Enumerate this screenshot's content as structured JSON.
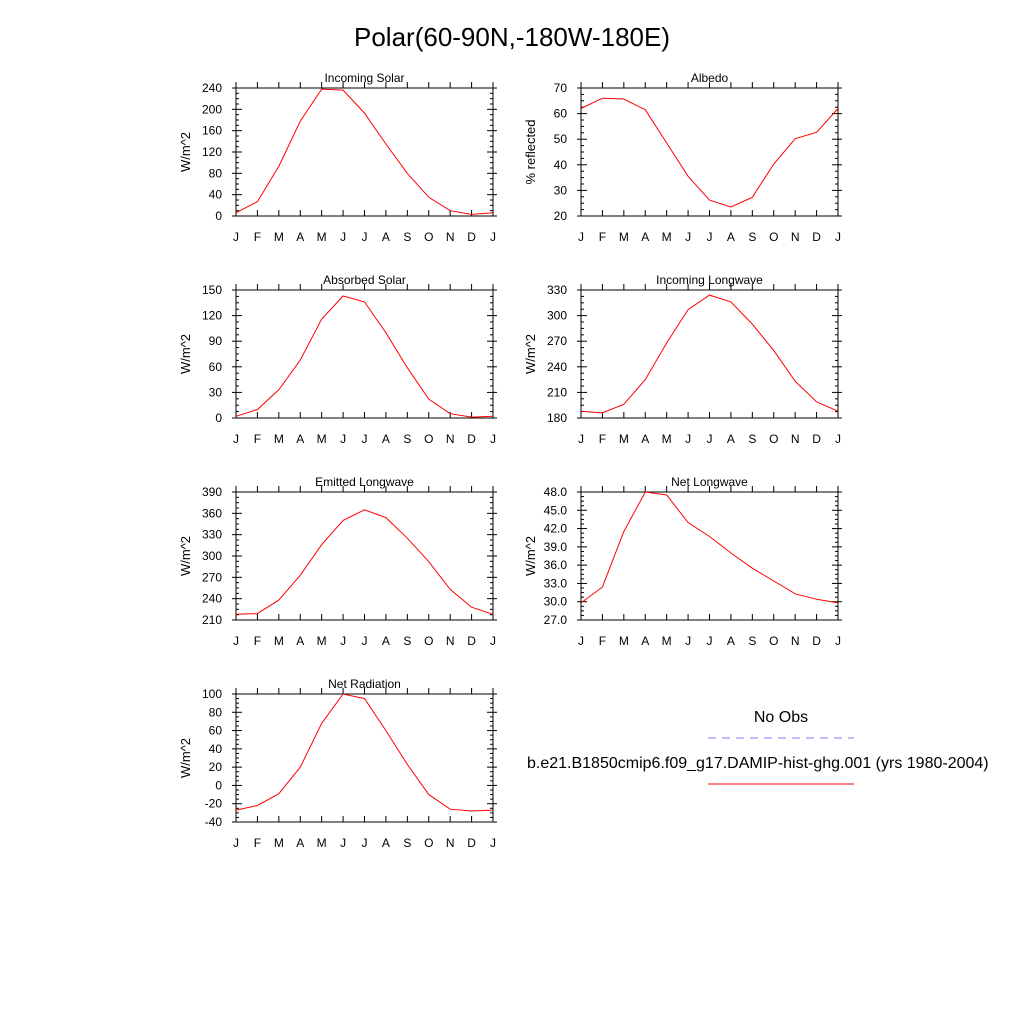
{
  "title": "Polar(60-90N,-180W-180E)",
  "legend": {
    "obs_label": "No Obs",
    "model_label": "b.e21.B1850cmip6.f09_g17.DAMIP-hist-ghg.001 (yrs 1980-2004)",
    "obs_color": "#7f7fff",
    "model_color": "#ff0000"
  },
  "chart_data": [
    {
      "type": "line",
      "title": "Incoming Solar",
      "ylabel": "W/m^2",
      "categories": [
        "J",
        "F",
        "M",
        "A",
        "M",
        "J",
        "J",
        "A",
        "S",
        "O",
        "N",
        "D",
        "J"
      ],
      "yticks": [
        "0",
        "40",
        "80",
        "120",
        "160",
        "200",
        "240"
      ],
      "ylim": [
        0,
        240
      ],
      "series": [
        {
          "values": [
            6,
            27,
            93,
            178,
            238,
            236,
            193,
            135,
            80,
            35,
            10,
            3,
            6
          ]
        }
      ]
    },
    {
      "type": "line",
      "title": "Albedo",
      "ylabel": "% reflected",
      "categories": [
        "J",
        "F",
        "M",
        "A",
        "M",
        "J",
        "J",
        "A",
        "S",
        "O",
        "N",
        "D",
        "J"
      ],
      "yticks": [
        "20",
        "30",
        "40",
        "50",
        "60",
        "70"
      ],
      "ylim": [
        20,
        70
      ],
      "series": [
        {
          "values": [
            62,
            66,
            65.7,
            61.5,
            48.5,
            35.5,
            26.2,
            23.5,
            27.3,
            40.3,
            50.2,
            52.7,
            62
          ]
        }
      ]
    },
    {
      "type": "line",
      "title": "Absorbed Solar",
      "ylabel": "W/m^2",
      "categories": [
        "J",
        "F",
        "M",
        "A",
        "M",
        "J",
        "J",
        "A",
        "S",
        "O",
        "N",
        "D",
        "J"
      ],
      "yticks": [
        "0",
        "30",
        "60",
        "90",
        "120",
        "150"
      ],
      "ylim": [
        0,
        150
      ],
      "series": [
        {
          "values": [
            2,
            10,
            33,
            68,
            116,
            143,
            136,
            100,
            59,
            22,
            5,
            1,
            2
          ]
        }
      ]
    },
    {
      "type": "line",
      "title": "Incoming Longwave",
      "ylabel": "W/m^2",
      "categories": [
        "J",
        "F",
        "M",
        "A",
        "M",
        "J",
        "J",
        "A",
        "S",
        "O",
        "N",
        "D",
        "J"
      ],
      "yticks": [
        "180",
        "210",
        "240",
        "270",
        "300",
        "330"
      ],
      "ylim": [
        180,
        330
      ],
      "series": [
        {
          "values": [
            188,
            186,
            196,
            225,
            268,
            307,
            324,
            316,
            290,
            259,
            223,
            199,
            188
          ]
        }
      ]
    },
    {
      "type": "line",
      "title": "Emitted Longwave",
      "ylabel": "W/m^2",
      "categories": [
        "J",
        "F",
        "M",
        "A",
        "M",
        "J",
        "J",
        "A",
        "S",
        "O",
        "N",
        "D",
        "J"
      ],
      "yticks": [
        "210",
        "240",
        "270",
        "300",
        "330",
        "360",
        "390"
      ],
      "ylim": [
        210,
        390
      ],
      "series": [
        {
          "values": [
            218,
            219,
            238,
            273,
            316,
            350,
            365,
            354,
            325,
            292,
            253,
            228,
            218
          ]
        }
      ]
    },
    {
      "type": "line",
      "title": "Net Longwave",
      "ylabel": "W/m^2",
      "categories": [
        "J",
        "F",
        "M",
        "A",
        "M",
        "J",
        "J",
        "A",
        "S",
        "O",
        "N",
        "D",
        "J"
      ],
      "yticks": [
        "27.0",
        "30.0",
        "33.0",
        "36.0",
        "39.0",
        "42.0",
        "45.0",
        "48.0"
      ],
      "ylim": [
        27,
        48
      ],
      "series": [
        {
          "values": [
            29.8,
            32.4,
            41.5,
            48,
            47.5,
            43,
            40.7,
            38,
            35.5,
            33.4,
            31.3,
            30.4,
            29.8
          ]
        }
      ]
    },
    {
      "type": "line",
      "title": "Net Radiation",
      "ylabel": "W/m^2",
      "categories": [
        "J",
        "F",
        "M",
        "A",
        "M",
        "J",
        "J",
        "A",
        "S",
        "O",
        "N",
        "D",
        "J"
      ],
      "yticks": [
        "-40",
        "-20",
        "0",
        "20",
        "40",
        "60",
        "80",
        "100"
      ],
      "ylim": [
        -40,
        100
      ],
      "series": [
        {
          "values": [
            -27,
            -22,
            -9,
            20,
            68,
            100,
            95,
            60,
            23,
            -10,
            -26,
            -28,
            -27
          ]
        }
      ]
    }
  ]
}
